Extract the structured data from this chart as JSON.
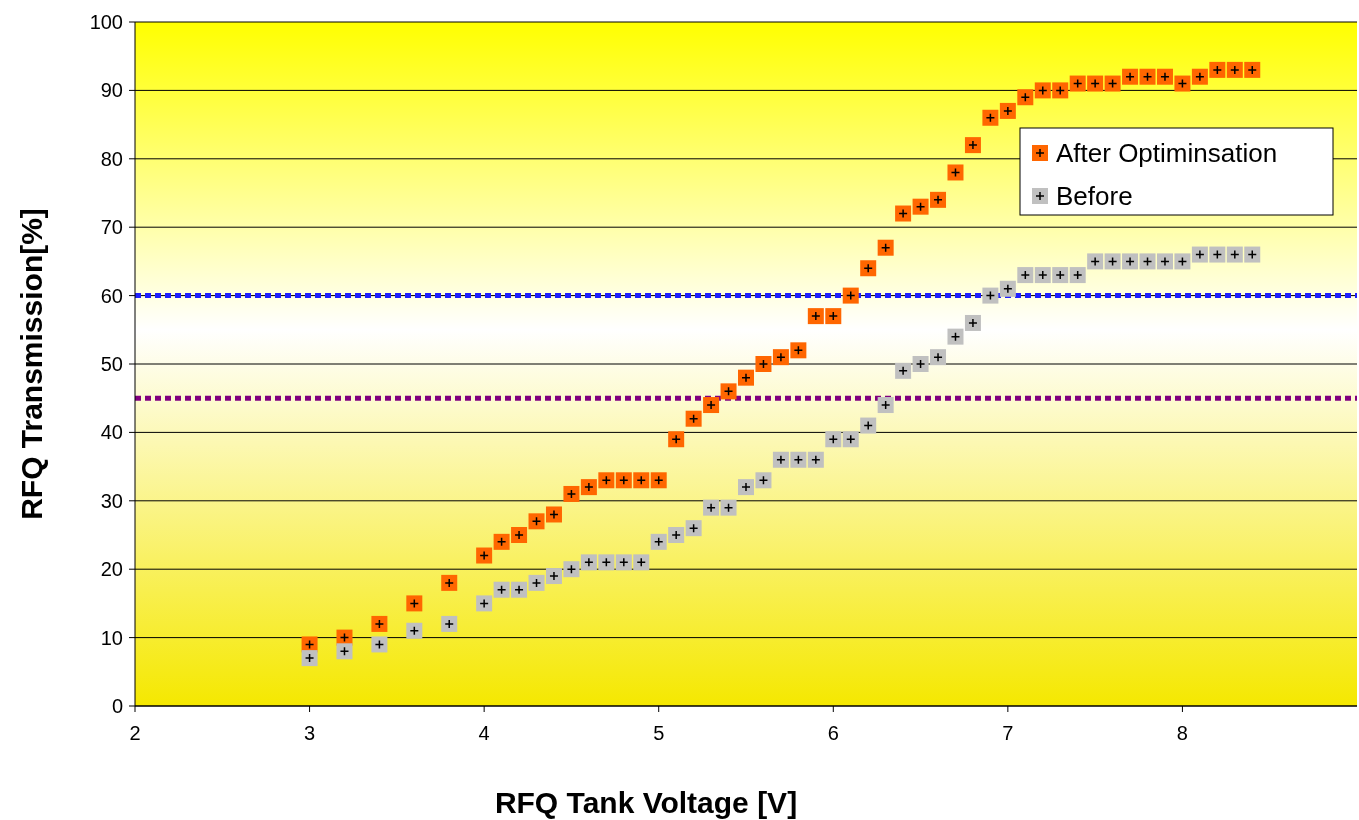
{
  "chart_data": {
    "type": "scatter",
    "xlabel": "RFQ Tank Voltage [V]",
    "ylabel": "RFQ Transmission[%]",
    "xlim": [
      2,
      9
    ],
    "xticks": [
      2,
      3,
      4,
      5,
      6,
      7,
      8
    ],
    "ylim": [
      0,
      100
    ],
    "yticks": [
      0,
      10,
      20,
      30,
      40,
      50,
      60,
      70,
      80,
      90,
      100
    ],
    "grid": "y",
    "legend": "top right",
    "marker": "square",
    "ref_lines": [
      {
        "axis": "y",
        "value": 60,
        "color": "#1f1fff",
        "line_style": "dotted"
      },
      {
        "axis": "y",
        "value": 45,
        "color": "#800080",
        "line_style": "dotted"
      }
    ],
    "series": [
      {
        "name": "After Optiminsation",
        "color": "#ff6600",
        "x": [
          3,
          3.2,
          3.4,
          3.6,
          3.8,
          4,
          4.1,
          4.2,
          4.3,
          4.4,
          4.5,
          4.6,
          4.7,
          4.8,
          4.9,
          5,
          5.1,
          5.2,
          5.3,
          5.4,
          5.5,
          5.6,
          5.7,
          5.8,
          5.9,
          6,
          6.1,
          6.2,
          6.3,
          6.4,
          6.5,
          6.6,
          6.7,
          6.8,
          6.9,
          7,
          7.1,
          7.2,
          7.3,
          7.4,
          7.5,
          7.6,
          7.7,
          7.8,
          7.9,
          8,
          8.1,
          8.2,
          8.3,
          8.4
        ],
        "values": [
          9,
          10,
          12,
          15,
          18,
          22,
          24,
          25,
          27,
          28,
          31,
          32,
          33,
          33,
          33,
          33,
          39,
          42,
          44,
          46,
          48,
          50,
          51,
          52,
          57,
          57,
          60,
          64,
          67,
          72,
          73,
          74,
          78,
          82,
          86,
          87,
          89,
          90,
          90,
          91,
          91,
          91,
          92,
          92,
          92,
          91,
          92,
          93,
          93,
          93
        ]
      },
      {
        "name": "Before",
        "color": "#c0c0c0",
        "x": [
          3,
          3.2,
          3.4,
          3.6,
          3.8,
          4,
          4.1,
          4.2,
          4.3,
          4.4,
          4.5,
          4.6,
          4.7,
          4.8,
          4.9,
          5,
          5.1,
          5.2,
          5.3,
          5.4,
          5.5,
          5.6,
          5.7,
          5.8,
          5.9,
          6,
          6.1,
          6.2,
          6.3,
          6.4,
          6.5,
          6.6,
          6.7,
          6.8,
          6.9,
          7,
          7.1,
          7.2,
          7.3,
          7.4,
          7.5,
          7.6,
          7.7,
          7.8,
          7.9,
          8,
          8.1,
          8.2,
          8.3,
          8.4
        ],
        "values": [
          7,
          8,
          9,
          11,
          12,
          15,
          17,
          17,
          18,
          19,
          20,
          21,
          21,
          21,
          21,
          24,
          25,
          26,
          29,
          29,
          32,
          33,
          36,
          36,
          36,
          39,
          39,
          41,
          44,
          49,
          50,
          51,
          54,
          56,
          60,
          61,
          63,
          63,
          63,
          63,
          65,
          65,
          65,
          65,
          65,
          65,
          66,
          66,
          66,
          66
        ]
      }
    ]
  }
}
